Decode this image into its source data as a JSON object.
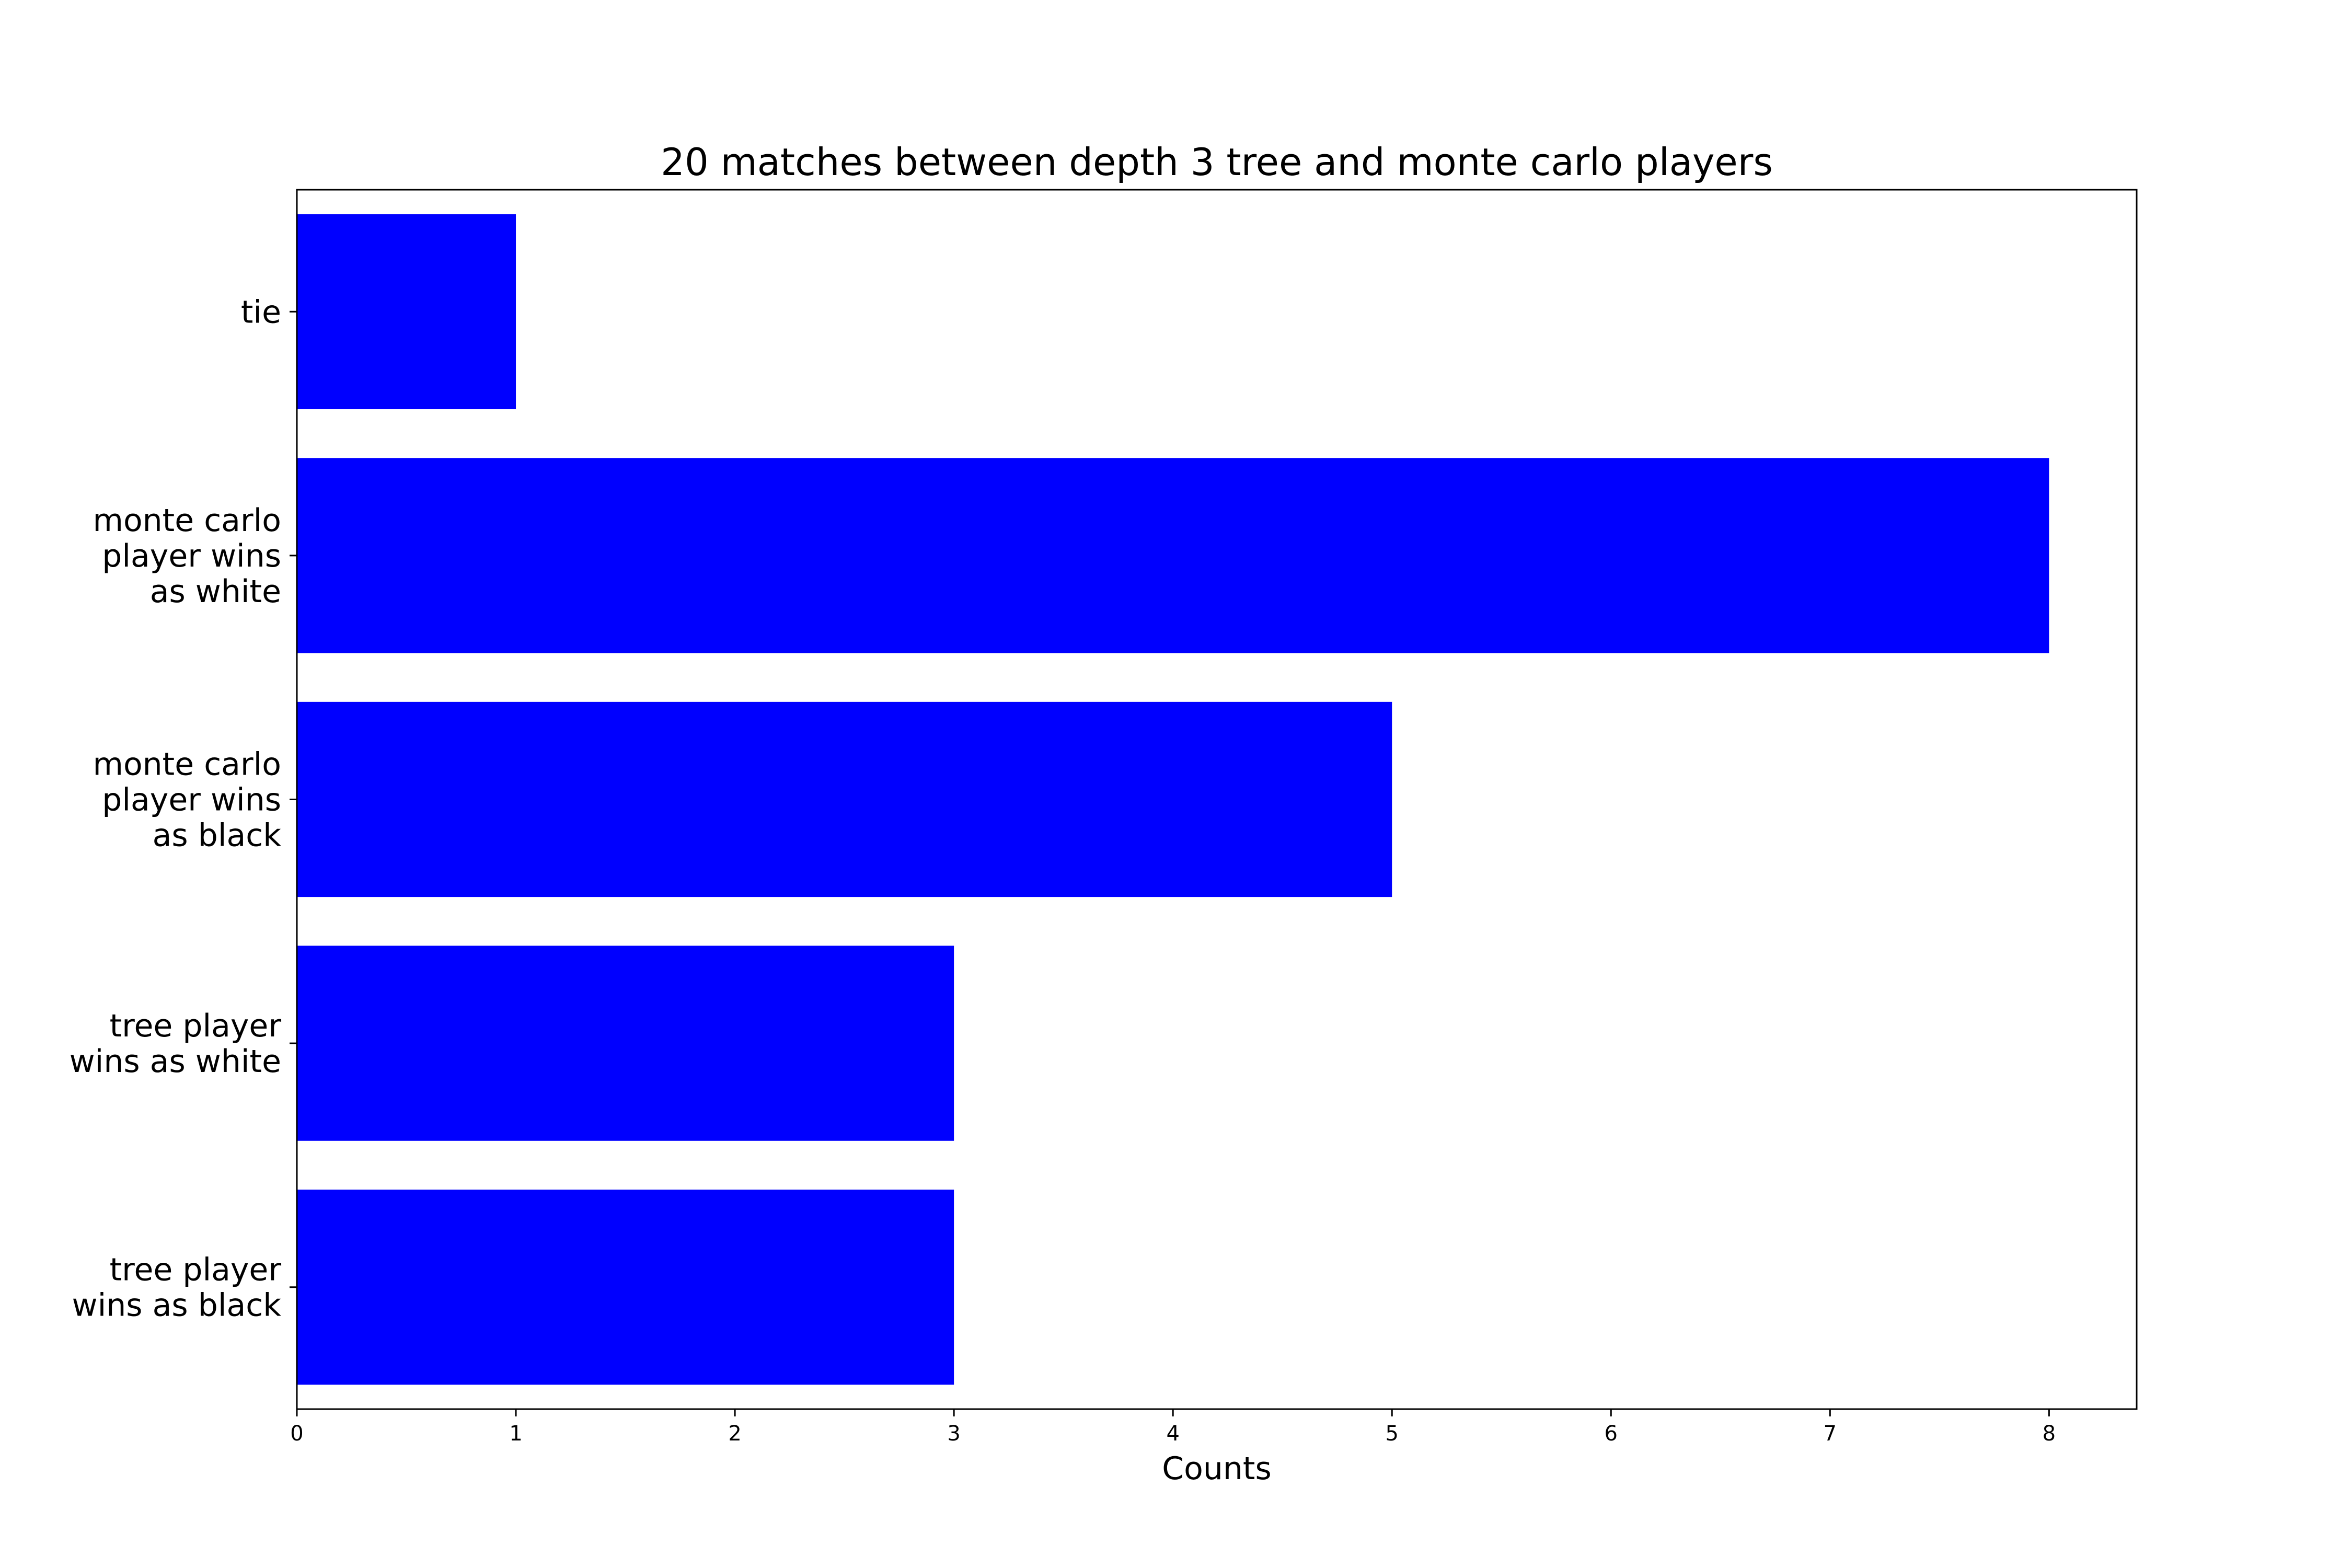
{
  "chart_data": {
    "type": "bar",
    "orientation": "horizontal",
    "title": "20 matches between depth 3 tree and monte carlo players",
    "xlabel": "Counts",
    "ylabel": "",
    "categories": [
      "tie",
      "monte carlo\nplayer wins\nas white",
      "monte carlo\nplayer wins\nas black",
      "tree player\nwins as white",
      "tree player\nwins as black"
    ],
    "values": [
      1,
      8,
      5,
      3,
      3
    ],
    "xlim": [
      0,
      8.4
    ],
    "xticks": [
      0,
      1,
      2,
      3,
      4,
      5,
      6,
      7,
      8
    ],
    "bar_color": "#0000ff",
    "grid": false
  }
}
